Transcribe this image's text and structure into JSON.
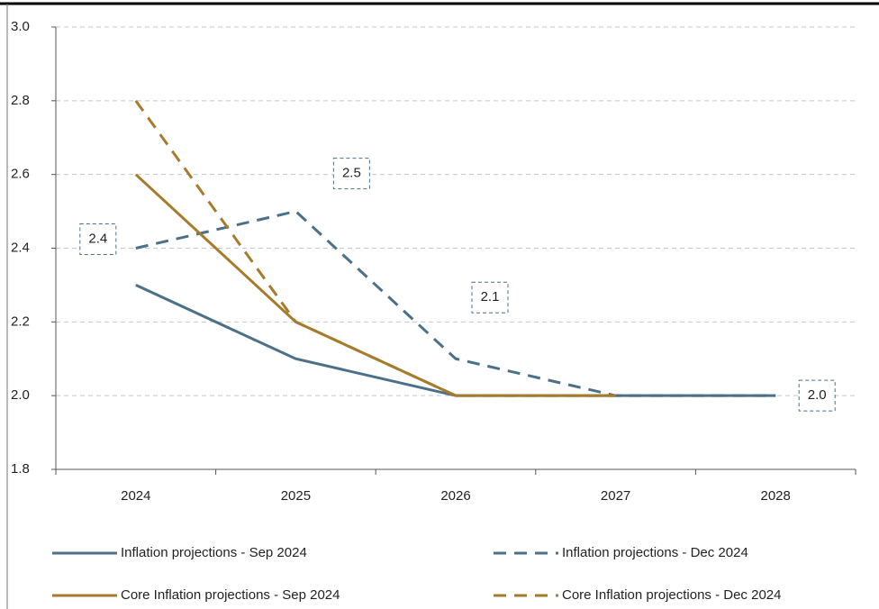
{
  "chart_data": {
    "type": "line",
    "categories": [
      "2024",
      "2025",
      "2026",
      "2027",
      "2028"
    ],
    "series": [
      {
        "name": "Inflation projections - Sep 2024",
        "color": "#4b7089",
        "dash": false,
        "values": [
          2.3,
          2.1,
          2.0,
          2.0,
          2.0
        ]
      },
      {
        "name": "Inflation projections - Dec 2024",
        "color": "#4b7089",
        "dash": true,
        "values": [
          2.4,
          2.5,
          2.1,
          2.0,
          2.0
        ],
        "value_labels": [
          "2.4",
          "2.5",
          "2.1",
          null,
          "2.0"
        ]
      },
      {
        "name": "Core Inflation projections - Sep 2024",
        "color": "#a77b2c",
        "dash": false,
        "values": [
          2.6,
          2.2,
          2.0,
          2.0,
          null
        ]
      },
      {
        "name": "Core Inflation projections - Dec 2024",
        "color": "#a77b2c",
        "dash": true,
        "values": [
          2.8,
          2.2,
          2.0,
          2.0,
          null
        ]
      }
    ],
    "ylim": [
      1.8,
      3.0
    ],
    "yticks": [
      1.8,
      {
        "value": 2.0,
        "label": "2.0"
      },
      2.2,
      2.4,
      2.6,
      2.8,
      {
        "value": 3.0,
        "label": "3.0"
      }
    ],
    "grid": true
  }
}
